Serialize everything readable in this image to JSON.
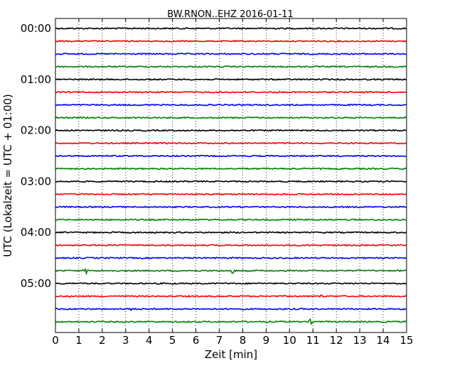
{
  "chart_data": {
    "type": "line",
    "title": "BW.RNON..EHZ 2016-01-11",
    "xlabel": "Zeit  [min]",
    "ylabel": "UTC (Lokalzeit = UTC + 01:00)",
    "xlim": [
      0,
      15
    ],
    "x_ticks": [
      "0",
      "1",
      "2",
      "3",
      "4",
      "5",
      "6",
      "7",
      "8",
      "9",
      "10",
      "11",
      "12",
      "13",
      "14",
      "15"
    ],
    "y_ticks": [
      "00:00",
      "01:00",
      "02:00",
      "03:00",
      "04:00",
      "05:00"
    ],
    "trace_interval_min": 15,
    "traces_count": 24,
    "trace_colors": [
      "#000000",
      "#ff0000",
      "#0000ff",
      "#008000"
    ],
    "grid": "vertical dotted at each minute",
    "events": [
      {
        "trace": 20,
        "minute": 1.3,
        "amplitude": 4
      },
      {
        "trace": 20,
        "minute": 7.6,
        "amplitude": 4
      },
      {
        "trace": 22,
        "minute": 11.3,
        "amplitude": 3
      },
      {
        "trace": 23,
        "minute": 3.2,
        "amplitude": 3
      },
      {
        "trace": 24,
        "minute": 10.9,
        "amplitude": 3
      }
    ]
  }
}
